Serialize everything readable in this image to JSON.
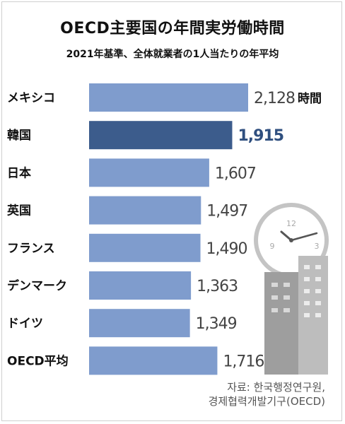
{
  "title": "OECD主要国の年間実労働時間",
  "subtitle": "2021年基準、全体就業者の1人当たりの年平均",
  "unit_label": "時間",
  "source_lines": [
    "자료: 한국행정연구원,",
    "경제협력개발기구(OECD)"
  ],
  "colors": {
    "bar": "#7f9ccd",
    "highlight": "#3c5c8c",
    "icon": "#b8b8b8"
  },
  "icons": [
    "clock-icon",
    "buildings-icon"
  ],
  "chart_data": {
    "type": "bar",
    "orientation": "horizontal",
    "title": "OECD主要国の年間実労働時間",
    "subtitle": "2021年基準、全体就業者の1人当たりの年平均",
    "categories": [
      "メキシコ",
      "韓国",
      "日本",
      "英国",
      "フランス",
      "デンマーク",
      "ドイツ",
      "OECD平均"
    ],
    "values": [
      2128,
      1915,
      1607,
      1497,
      1490,
      1363,
      1349,
      1716
    ],
    "value_labels": [
      "2,128",
      "1,915",
      "1,607",
      "1,497",
      "1,490",
      "1,363",
      "1,349",
      "1,716"
    ],
    "highlight": "韓国",
    "unit": "時間"
  }
}
